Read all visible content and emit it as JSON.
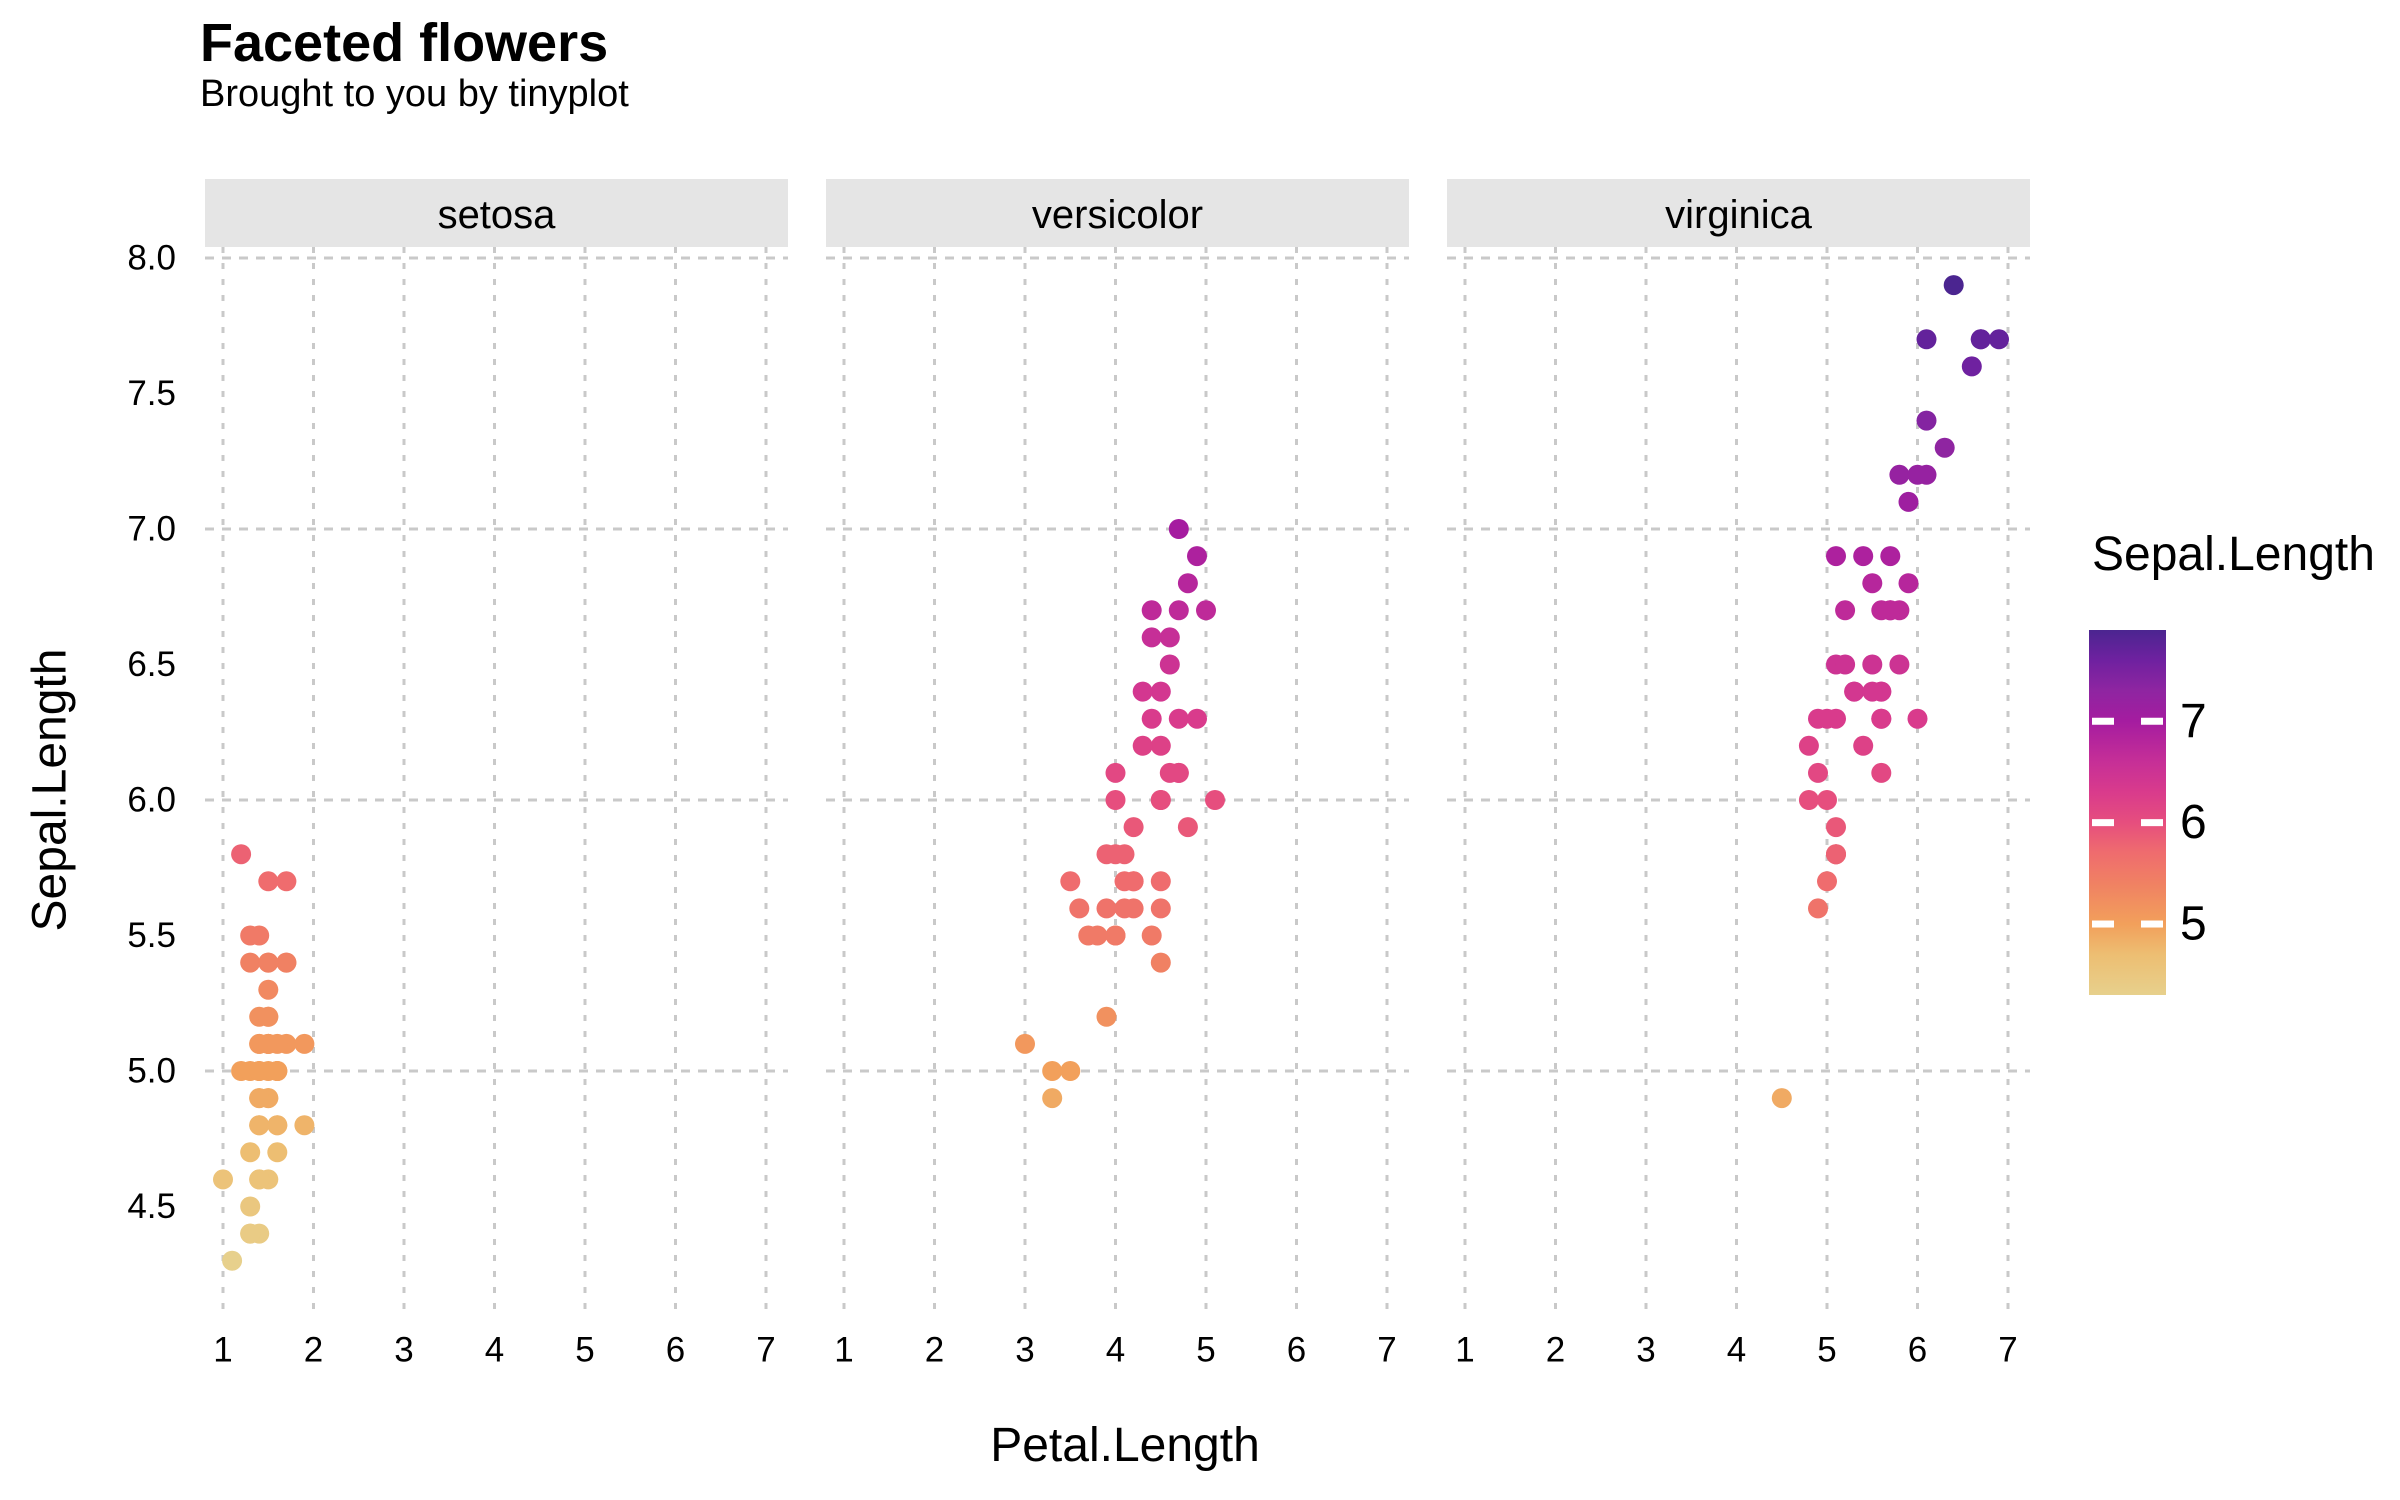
{
  "header": {
    "title": "Faceted flowers",
    "subtitle": "Brought to you by tinyplot"
  },
  "axes": {
    "x_title": "Petal.Length",
    "y_title": "Sepal.Length"
  },
  "legend": {
    "title": "Sepal.Length",
    "tick_labels": [
      "7",
      "6",
      "5"
    ],
    "tick_values": [
      7,
      6,
      5
    ],
    "range": [
      4.3,
      7.9
    ]
  },
  "style": {
    "background": "#FFFFFF",
    "strip_fill": "#E5E5E5",
    "grid_color": "#C9C9C9",
    "text_color": "#000000",
    "legend_tick_color": "#FFFFFF",
    "color_stops": [
      [
        4.3,
        "#E7D08C"
      ],
      [
        4.7,
        "#EDBE72"
      ],
      [
        5.0,
        "#F2A05B"
      ],
      [
        5.4,
        "#F08163"
      ],
      [
        5.7,
        "#EF6C6E"
      ],
      [
        6.0,
        "#E64E7E"
      ],
      [
        6.3,
        "#D93B8C"
      ],
      [
        6.6,
        "#C62F97"
      ],
      [
        7.0,
        "#A51CA0"
      ],
      [
        7.3,
        "#8F25A1"
      ],
      [
        7.6,
        "#6F21A0"
      ],
      [
        7.9,
        "#4B2590"
      ]
    ]
  },
  "chart_data": {
    "type": "scatter",
    "title": "Faceted flowers",
    "subtitle": "Brought to you by tinyplot",
    "xlabel": "Petal.Length",
    "ylabel": "Sepal.Length",
    "color_var": "Sepal.Length",
    "faceted_by": "Species",
    "xlim": [
      0.8,
      7.25
    ],
    "ylim": [
      4.12,
      8.04
    ],
    "x_ticks": [
      1,
      2,
      3,
      4,
      5,
      6,
      7
    ],
    "y_tick_labels": [
      "4.5",
      "5.0",
      "5.5",
      "6.0",
      "6.5",
      "7.0",
      "7.5",
      "8.0"
    ],
    "x_gridlines": [
      1,
      2,
      3,
      4,
      5,
      6,
      7
    ],
    "y_gridlines": [
      5,
      6,
      7,
      8
    ],
    "grid": true,
    "legend_position": "right",
    "facets": [
      {
        "label": "setosa",
        "points": [
          [
            1.4,
            5.1
          ],
          [
            1.4,
            4.9
          ],
          [
            1.3,
            4.7
          ],
          [
            1.5,
            4.6
          ],
          [
            1.4,
            5.0
          ],
          [
            1.7,
            5.4
          ],
          [
            1.4,
            4.6
          ],
          [
            1.5,
            5.0
          ],
          [
            1.4,
            4.4
          ],
          [
            1.5,
            4.9
          ],
          [
            1.5,
            5.4
          ],
          [
            1.6,
            4.8
          ],
          [
            1.4,
            4.8
          ],
          [
            1.1,
            4.3
          ],
          [
            1.2,
            5.8
          ],
          [
            1.5,
            5.7
          ],
          [
            1.3,
            5.4
          ],
          [
            1.4,
            5.1
          ],
          [
            1.7,
            5.7
          ],
          [
            1.5,
            5.1
          ],
          [
            1.7,
            5.4
          ],
          [
            1.5,
            5.1
          ],
          [
            1.0,
            4.6
          ],
          [
            1.7,
            5.1
          ],
          [
            1.9,
            4.8
          ],
          [
            1.6,
            5.0
          ],
          [
            1.6,
            5.0
          ],
          [
            1.5,
            5.2
          ],
          [
            1.4,
            5.2
          ],
          [
            1.6,
            4.7
          ],
          [
            1.6,
            4.8
          ],
          [
            1.5,
            5.4
          ],
          [
            1.5,
            5.2
          ],
          [
            1.4,
            5.5
          ],
          [
            1.5,
            4.9
          ],
          [
            1.2,
            5.0
          ],
          [
            1.3,
            5.5
          ],
          [
            1.4,
            4.9
          ],
          [
            1.3,
            4.4
          ],
          [
            1.5,
            5.1
          ],
          [
            1.3,
            5.0
          ],
          [
            1.3,
            4.5
          ],
          [
            1.3,
            4.4
          ],
          [
            1.6,
            5.0
          ],
          [
            1.9,
            5.1
          ],
          [
            1.4,
            4.8
          ],
          [
            1.6,
            5.1
          ],
          [
            1.4,
            4.6
          ],
          [
            1.5,
            5.3
          ],
          [
            1.4,
            5.0
          ]
        ]
      },
      {
        "label": "versicolor",
        "points": [
          [
            4.7,
            7.0
          ],
          [
            4.5,
            6.4
          ],
          [
            4.9,
            6.9
          ],
          [
            4.0,
            5.5
          ],
          [
            4.6,
            6.5
          ],
          [
            4.5,
            5.7
          ],
          [
            4.7,
            6.3
          ],
          [
            3.3,
            4.9
          ],
          [
            4.6,
            6.6
          ],
          [
            3.9,
            5.2
          ],
          [
            3.5,
            5.0
          ],
          [
            4.2,
            5.9
          ],
          [
            4.0,
            6.0
          ],
          [
            4.7,
            6.1
          ],
          [
            3.6,
            5.6
          ],
          [
            4.4,
            6.7
          ],
          [
            4.5,
            5.6
          ],
          [
            4.1,
            5.8
          ],
          [
            4.5,
            6.2
          ],
          [
            3.9,
            5.6
          ],
          [
            4.8,
            5.9
          ],
          [
            4.0,
            6.1
          ],
          [
            4.9,
            6.3
          ],
          [
            4.7,
            6.1
          ],
          [
            4.3,
            6.4
          ],
          [
            4.4,
            6.6
          ],
          [
            4.8,
            6.8
          ],
          [
            5.0,
            6.7
          ],
          [
            4.5,
            6.0
          ],
          [
            3.5,
            5.7
          ],
          [
            3.8,
            5.5
          ],
          [
            3.7,
            5.5
          ],
          [
            3.9,
            5.8
          ],
          [
            5.1,
            6.0
          ],
          [
            4.5,
            5.4
          ],
          [
            4.5,
            6.0
          ],
          [
            4.7,
            6.7
          ],
          [
            4.4,
            6.3
          ],
          [
            4.1,
            5.6
          ],
          [
            4.0,
            5.5
          ],
          [
            4.4,
            5.5
          ],
          [
            4.6,
            6.1
          ],
          [
            4.0,
            5.8
          ],
          [
            3.3,
            5.0
          ],
          [
            4.2,
            5.6
          ],
          [
            4.2,
            5.7
          ],
          [
            4.2,
            5.7
          ],
          [
            4.3,
            6.2
          ],
          [
            3.0,
            5.1
          ],
          [
            4.1,
            5.7
          ]
        ]
      },
      {
        "label": "virginica",
        "points": [
          [
            6.0,
            6.3
          ],
          [
            5.1,
            5.8
          ],
          [
            5.9,
            7.1
          ],
          [
            5.6,
            6.3
          ],
          [
            5.8,
            6.5
          ],
          [
            6.6,
            7.6
          ],
          [
            4.5,
            4.9
          ],
          [
            6.3,
            7.3
          ],
          [
            5.8,
            6.7
          ],
          [
            6.1,
            7.2
          ],
          [
            5.1,
            6.5
          ],
          [
            5.3,
            6.4
          ],
          [
            5.5,
            6.8
          ],
          [
            5.0,
            5.7
          ],
          [
            5.1,
            5.8
          ],
          [
            5.3,
            6.4
          ],
          [
            5.5,
            6.5
          ],
          [
            6.7,
            7.7
          ],
          [
            6.9,
            7.7
          ],
          [
            5.0,
            6.0
          ],
          [
            5.7,
            6.9
          ],
          [
            4.9,
            5.6
          ],
          [
            6.7,
            7.7
          ],
          [
            4.9,
            6.3
          ],
          [
            5.7,
            6.7
          ],
          [
            6.0,
            7.2
          ],
          [
            4.8,
            6.2
          ],
          [
            4.9,
            6.1
          ],
          [
            5.6,
            6.4
          ],
          [
            5.8,
            7.2
          ],
          [
            6.1,
            7.4
          ],
          [
            6.4,
            7.9
          ],
          [
            5.6,
            6.4
          ],
          [
            5.1,
            6.3
          ],
          [
            5.6,
            6.1
          ],
          [
            6.1,
            7.7
          ],
          [
            5.6,
            6.3
          ],
          [
            5.5,
            6.4
          ],
          [
            4.8,
            6.0
          ],
          [
            5.4,
            6.9
          ],
          [
            5.6,
            6.7
          ],
          [
            5.1,
            6.9
          ],
          [
            5.1,
            5.8
          ],
          [
            5.9,
            6.8
          ],
          [
            5.7,
            6.7
          ],
          [
            5.2,
            6.7
          ],
          [
            5.0,
            6.3
          ],
          [
            5.2,
            6.5
          ],
          [
            5.4,
            6.2
          ],
          [
            5.1,
            5.9
          ]
        ]
      }
    ]
  }
}
